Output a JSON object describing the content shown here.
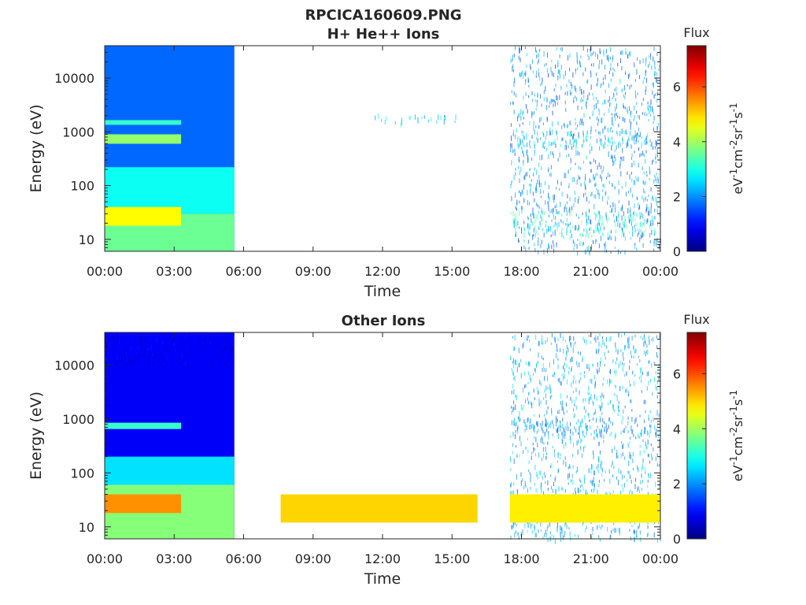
{
  "figure_title": "RPCICA160609.PNG",
  "chart_data": [
    {
      "type": "heatmap",
      "title": "H+ He++ Ions",
      "xlabel": "Time",
      "ylabel": "Energy (eV)",
      "x_ticks": [
        "00:00",
        "03:00",
        "06:00",
        "09:00",
        "12:00",
        "15:00",
        "18:00",
        "21:00",
        "00:00"
      ],
      "y_ticks": [
        {
          "value": 10,
          "label": "10"
        },
        {
          "value": 100,
          "label": "100"
        },
        {
          "value": 1000,
          "label": "1000"
        },
        {
          "value": 10000,
          "label": "10000"
        }
      ],
      "xlim_hours": [
        0,
        24
      ],
      "ylim": [
        6,
        40000
      ],
      "y_scale": "log",
      "colorbar": {
        "title": "Flux",
        "units": "eV-1cm-2sr-1s-1",
        "range": [
          0,
          7.5
        ],
        "ticks": [
          0,
          2,
          4,
          6
        ]
      },
      "colormap": "jet",
      "regions": [
        {
          "name": "background",
          "t": [
            0,
            5.6
          ],
          "e": [
            6,
            40000
          ],
          "flux": 1.7
        },
        {
          "name": "mid-energy",
          "t": [
            0,
            5.6
          ],
          "e": [
            30,
            220
          ],
          "flux": 2.9
        },
        {
          "name": "low-energy",
          "t": [
            0,
            5.6
          ],
          "e": [
            6,
            30
          ],
          "flux": 3.6
        },
        {
          "name": "low-band-early",
          "t": [
            0,
            3.3
          ],
          "e": [
            18,
            40
          ],
          "flux": 4.7
        },
        {
          "name": "band-700eV",
          "t": [
            0,
            3.3
          ],
          "e": [
            600,
            900
          ],
          "flux": 3.9
        },
        {
          "name": "band-1500eV",
          "t": [
            0,
            3.3
          ],
          "e": [
            1350,
            1650
          ],
          "flux": 3.2
        },
        {
          "name": "scattered-late",
          "t": [
            17.5,
            24
          ],
          "e": [
            6,
            40000
          ],
          "flux": 2.0,
          "sparse": true
        },
        {
          "name": "band-700eV-late",
          "t": [
            17.5,
            23.8
          ],
          "e": [
            550,
            1100
          ],
          "flux": 2.6,
          "sparse": true
        },
        {
          "name": "band-20eV-late",
          "t": [
            17.5,
            24
          ],
          "e": [
            12,
            35
          ],
          "flux": 3.2,
          "sparse": true
        },
        {
          "name": "faint-noon",
          "t": [
            11.5,
            15.2
          ],
          "e": [
            1500,
            2200
          ],
          "flux": 2.6,
          "sparse": true
        }
      ]
    },
    {
      "type": "heatmap",
      "title": "Other Ions",
      "xlabel": "Time",
      "ylabel": "Energy (eV)",
      "x_ticks": [
        "00:00",
        "03:00",
        "06:00",
        "09:00",
        "12:00",
        "15:00",
        "18:00",
        "21:00",
        "00:00"
      ],
      "y_ticks": [
        {
          "value": 10,
          "label": "10"
        },
        {
          "value": 100,
          "label": "100"
        },
        {
          "value": 1000,
          "label": "1000"
        },
        {
          "value": 10000,
          "label": "10000"
        }
      ],
      "xlim_hours": [
        0,
        24
      ],
      "ylim": [
        6,
        40000
      ],
      "y_scale": "log",
      "colorbar": {
        "title": "Flux",
        "units": "eV-1cm-2sr-1s-1",
        "range": [
          0,
          7.5
        ],
        "ticks": [
          0,
          2,
          4,
          6
        ]
      },
      "colormap": "jet",
      "regions": [
        {
          "name": "background",
          "t": [
            0,
            5.6
          ],
          "e": [
            6,
            40000
          ],
          "flux": 0.9
        },
        {
          "name": "high-energy-noise",
          "t": [
            0,
            5.6
          ],
          "e": [
            11000,
            40000
          ],
          "flux": 0.6,
          "sparse": true
        },
        {
          "name": "mid-energy",
          "t": [
            0,
            5.6
          ],
          "e": [
            60,
            200
          ],
          "flux": 2.6
        },
        {
          "name": "low-energy",
          "t": [
            0,
            5.6
          ],
          "e": [
            6,
            60
          ],
          "flux": 3.8
        },
        {
          "name": "low-band-early",
          "t": [
            0,
            3.3
          ],
          "e": [
            18,
            40
          ],
          "flux": 5.5
        },
        {
          "name": "band-700eV",
          "t": [
            0,
            3.3
          ],
          "e": [
            650,
            850
          ],
          "flux": 3.2
        },
        {
          "name": "low-band-midday",
          "t": [
            7.6,
            16.1
          ],
          "e": [
            12,
            40
          ],
          "flux": 5.0
        },
        {
          "name": "scattered-late",
          "t": [
            17.5,
            24
          ],
          "e": [
            6,
            40000
          ],
          "flux": 2.2,
          "sparse": true
        },
        {
          "name": "band-700eV-late",
          "t": [
            17.5,
            23.8
          ],
          "e": [
            550,
            1100
          ],
          "flux": 2.0,
          "sparse": true
        },
        {
          "name": "low-band-late",
          "t": [
            17.5,
            24
          ],
          "e": [
            12,
            40
          ],
          "flux": 4.8
        }
      ]
    }
  ]
}
